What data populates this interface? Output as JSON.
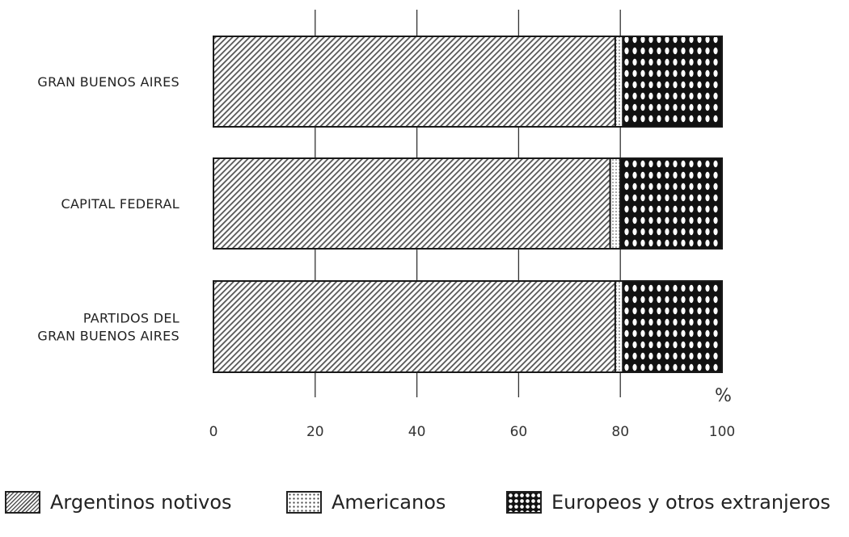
{
  "chart_data": {
    "type": "bar",
    "orientation": "horizontal",
    "stacked": true,
    "title": "",
    "xlabel": "",
    "unit": "%",
    "xlim": [
      0,
      100
    ],
    "xticks": [
      "0",
      "20",
      "40",
      "60",
      "80",
      "100"
    ],
    "grid": "vertical gridlines at 20, 40, 60, 80",
    "categories": [
      [
        "GRAN BUENOS AIRES"
      ],
      [
        "CAPITAL FEDERAL"
      ],
      [
        "PARTIDOS DEL",
        "GRAN BUENOS AIRES"
      ]
    ],
    "series": [
      {
        "name": "Argentinos notivos",
        "values": [
          79,
          78,
          79
        ],
        "pattern": "diagonal-hatch",
        "color": "#555555"
      },
      {
        "name": "Americanos",
        "values": [
          1.5,
          2,
          1.5
        ],
        "pattern": "fine-dots",
        "color": "#444444"
      },
      {
        "name": "Europeos y otros extranjeros",
        "values": [
          19.5,
          20,
          19.5
        ],
        "pattern": "dense-crosshatch",
        "color": "#111111"
      }
    ],
    "legend_position": "bottom"
  }
}
